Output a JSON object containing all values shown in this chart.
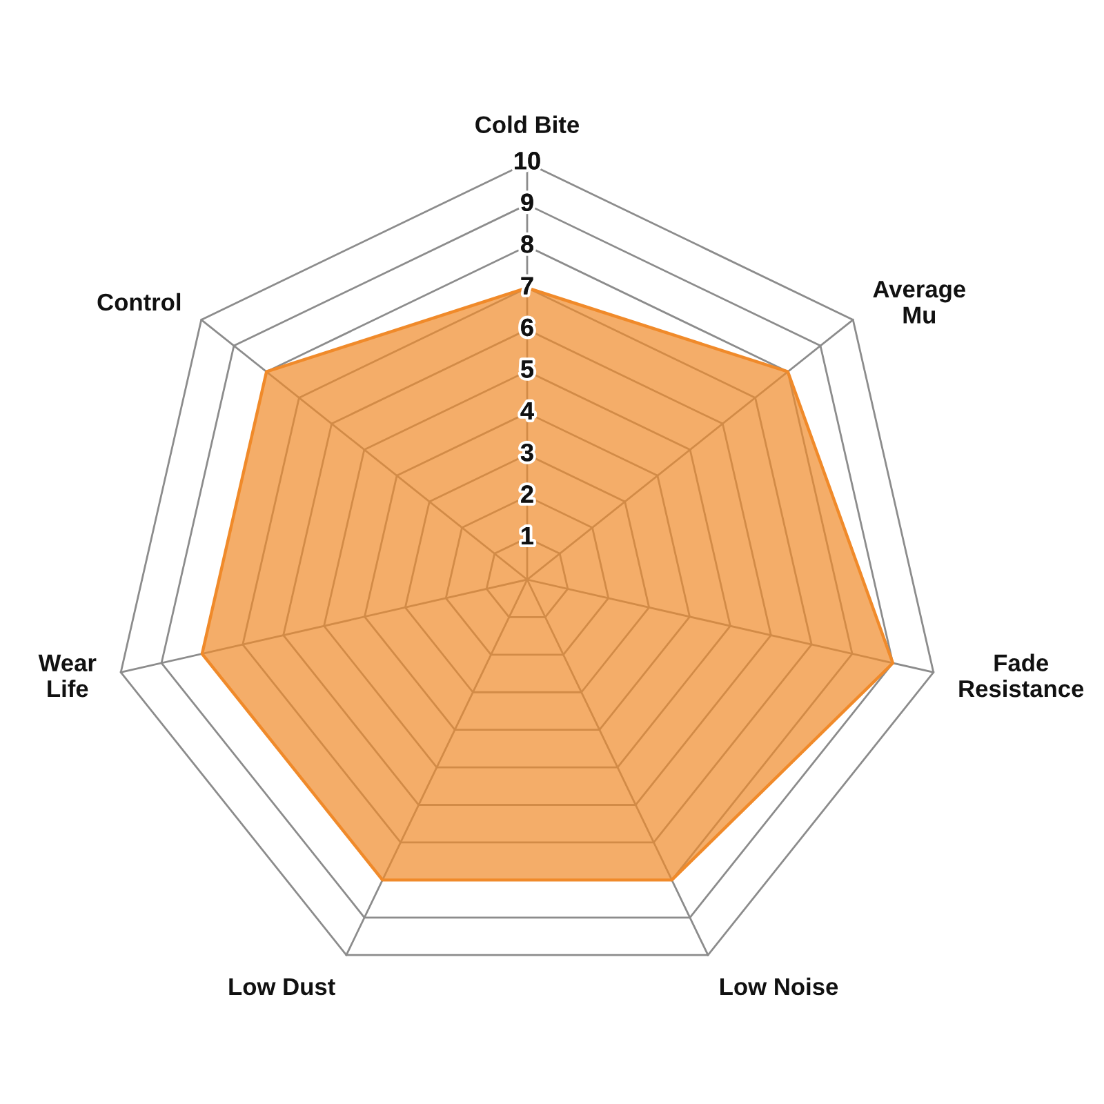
{
  "chart_data": {
    "type": "radar",
    "categories": [
      "Cold Bite",
      "Average\nMu",
      "Fade\nResistance",
      "Low Noise",
      "Low Dust",
      "Wear\nLife",
      "Control"
    ],
    "series": [
      {
        "color": "#f08a2a",
        "values": [
          7,
          8,
          9,
          8,
          8,
          8,
          8
        ]
      }
    ],
    "ylim": [
      0,
      10
    ],
    "yticks": [
      1,
      2,
      3,
      4,
      5,
      6,
      7,
      8,
      9,
      10
    ],
    "grid": true
  }
}
